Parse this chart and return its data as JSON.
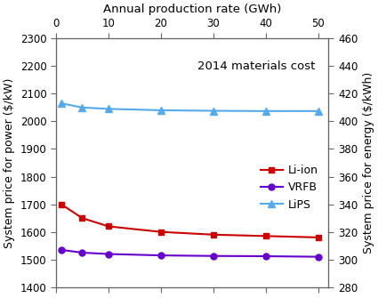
{
  "x_data": [
    1,
    5,
    10,
    20,
    30,
    40,
    50
  ],
  "liion_y": [
    1700,
    1650,
    1620,
    1600,
    1590,
    1585,
    1580
  ],
  "vrfb_y": [
    1535,
    1525,
    1520,
    1515,
    1513,
    1512,
    1510
  ],
  "lips_y": [
    2065,
    2050,
    2045,
    2040,
    2038,
    2037,
    2037
  ],
  "x_top_ticks": [
    0,
    10,
    20,
    30,
    40,
    50
  ],
  "ylim_left": [
    1400,
    2300
  ],
  "ylim_right": [
    280,
    460
  ],
  "yticks_left": [
    1400,
    1500,
    1600,
    1700,
    1800,
    1900,
    2000,
    2100,
    2200,
    2300
  ],
  "yticks_right": [
    280,
    300,
    320,
    340,
    360,
    380,
    400,
    420,
    440,
    460
  ],
  "xlabel_top": "Annual production rate (GWh)",
  "ylabel_left": "System price for power ($/kW)",
  "ylabel_right": "System price for energy ($/kWh)",
  "annotation": "2014 materials cost",
  "liion_color": "#cc0000",
  "vrfb_color": "#6600cc",
  "lips_color": "#55aaee",
  "legend_labels": [
    "Li-ion",
    "VRFB",
    "LiPS"
  ],
  "xlim": [
    0,
    52
  ]
}
